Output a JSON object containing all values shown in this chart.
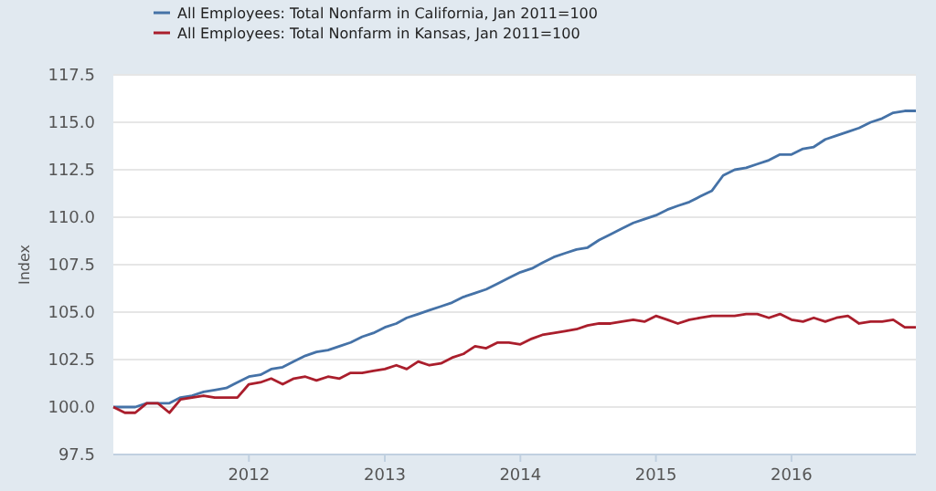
{
  "chart_data": {
    "type": "line",
    "ylabel": "Index",
    "legend": "top left",
    "grid": "y",
    "line_style": "solid",
    "x": [
      "2011-01",
      "2011-02",
      "2011-03",
      "2011-04",
      "2011-05",
      "2011-06",
      "2011-07",
      "2011-08",
      "2011-09",
      "2011-10",
      "2011-11",
      "2011-12",
      "2012-01",
      "2012-02",
      "2012-03",
      "2012-04",
      "2012-05",
      "2012-06",
      "2012-07",
      "2012-08",
      "2012-09",
      "2012-10",
      "2012-11",
      "2012-12",
      "2013-01",
      "2013-02",
      "2013-03",
      "2013-04",
      "2013-05",
      "2013-06",
      "2013-07",
      "2013-08",
      "2013-09",
      "2013-10",
      "2013-11",
      "2013-12",
      "2014-01",
      "2014-02",
      "2014-03",
      "2014-04",
      "2014-05",
      "2014-06",
      "2014-07",
      "2014-08",
      "2014-09",
      "2014-10",
      "2014-11",
      "2014-12",
      "2015-01",
      "2015-02",
      "2015-03",
      "2015-04",
      "2015-05",
      "2015-06",
      "2015-07",
      "2015-08",
      "2015-09",
      "2015-10",
      "2015-11",
      "2015-12",
      "2016-01",
      "2016-02",
      "2016-03",
      "2016-04",
      "2016-05",
      "2016-06",
      "2016-07",
      "2016-08",
      "2016-09",
      "2016-10",
      "2016-11",
      "2016-12"
    ],
    "xlim": [
      "2011-01",
      "2016-12"
    ],
    "xticks": [
      "2012",
      "2013",
      "2014",
      "2015",
      "2016"
    ],
    "ylim": [
      97.5,
      117.5
    ],
    "yticks": [
      {
        "value": 97.5,
        "label": "97.5"
      },
      {
        "value": 100,
        "label": "100.0"
      },
      {
        "value": 102.5,
        "label": "102.5"
      },
      {
        "value": 105,
        "label": "105.0"
      },
      {
        "value": 107.5,
        "label": "107.5"
      },
      {
        "value": 110,
        "label": "110.0"
      },
      {
        "value": 112.5,
        "label": "112.5"
      },
      {
        "value": 115,
        "label": "115.0"
      },
      {
        "value": 117.5,
        "label": "117.5"
      }
    ],
    "series": [
      {
        "name": "All Employees: Total Nonfarm in California, Jan 2011=100",
        "color": "#4572a7",
        "values": [
          100.0,
          100.0,
          100.0,
          100.2,
          100.2,
          100.2,
          100.5,
          100.6,
          100.8,
          100.9,
          101.0,
          101.3,
          101.6,
          101.7,
          102.0,
          102.1,
          102.4,
          102.7,
          102.9,
          103.0,
          103.2,
          103.4,
          103.7,
          103.9,
          104.2,
          104.4,
          104.7,
          104.9,
          105.1,
          105.3,
          105.5,
          105.8,
          106.0,
          106.2,
          106.5,
          106.8,
          107.1,
          107.3,
          107.6,
          107.9,
          108.1,
          108.3,
          108.4,
          108.8,
          109.1,
          109.4,
          109.7,
          109.9,
          110.1,
          110.4,
          110.6,
          110.8,
          111.1,
          111.4,
          112.2,
          112.5,
          112.6,
          112.8,
          113.0,
          113.3,
          113.3,
          113.6,
          113.7,
          114.1,
          114.3,
          114.5,
          114.7,
          115.0,
          115.2,
          115.5,
          115.6,
          115.6
        ]
      },
      {
        "name": "All Employees: Total Nonfarm in Kansas, Jan 2011=100",
        "color": "#aa1e2c",
        "values": [
          100.0,
          99.7,
          99.7,
          100.2,
          100.2,
          99.7,
          100.4,
          100.5,
          100.6,
          100.5,
          100.5,
          100.5,
          101.2,
          101.3,
          101.5,
          101.2,
          101.5,
          101.6,
          101.4,
          101.6,
          101.5,
          101.8,
          101.8,
          101.9,
          102.0,
          102.2,
          102.0,
          102.4,
          102.2,
          102.3,
          102.6,
          102.8,
          103.2,
          103.1,
          103.4,
          103.4,
          103.3,
          103.6,
          103.8,
          103.9,
          104.0,
          104.1,
          104.3,
          104.4,
          104.4,
          104.5,
          104.6,
          104.5,
          104.8,
          104.6,
          104.4,
          104.6,
          104.7,
          104.8,
          104.8,
          104.8,
          104.9,
          104.9,
          104.7,
          104.9,
          104.6,
          104.5,
          104.7,
          104.5,
          104.7,
          104.8,
          104.4,
          104.5,
          104.5,
          104.6,
          104.2,
          104.2
        ]
      }
    ]
  }
}
